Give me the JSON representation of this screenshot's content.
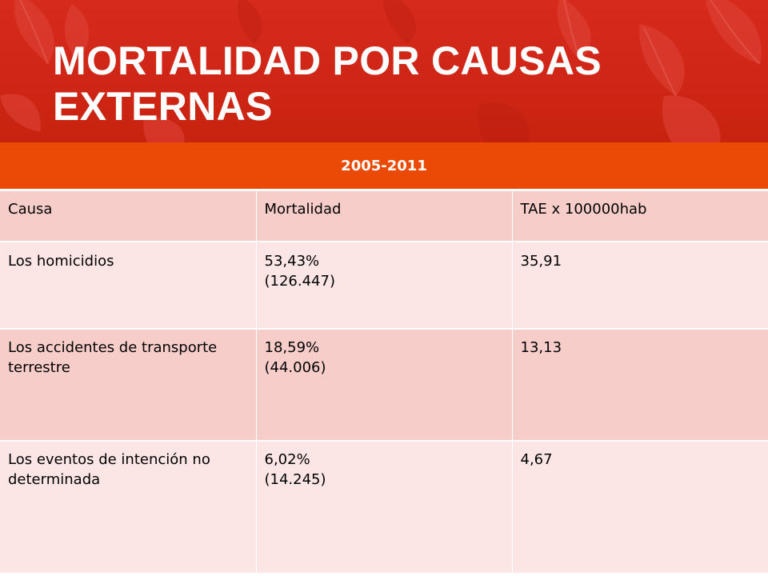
{
  "title": "MORTALIDAD POR CAUSAS EXTERNAS",
  "table": {
    "period": "2005-2011",
    "headers": [
      "Causa",
      "Mortalidad",
      "TAE x 100000hab"
    ],
    "rows": [
      {
        "causa": "Los homicidios",
        "mortalidad_pct": "53,43%",
        "mortalidad_n": "(126.447)",
        "tae": "35,91"
      },
      {
        "causa": "Los accidentes de transporte terrestre",
        "mortalidad_pct": "18,59%",
        "mortalidad_n": "(44.006)",
        "tae": "13,13"
      },
      {
        "causa": "Los eventos de intención no determinada",
        "mortalidad_pct": "6,02%",
        "mortalidad_n": "(14.245)",
        "tae": "4,67"
      }
    ]
  },
  "colors": {
    "header_background": "#d12818",
    "period_row": "#ea4a06",
    "row_dark": "#f6cdc9",
    "row_light": "#fbe6e5",
    "title_text": "#ffffff"
  }
}
